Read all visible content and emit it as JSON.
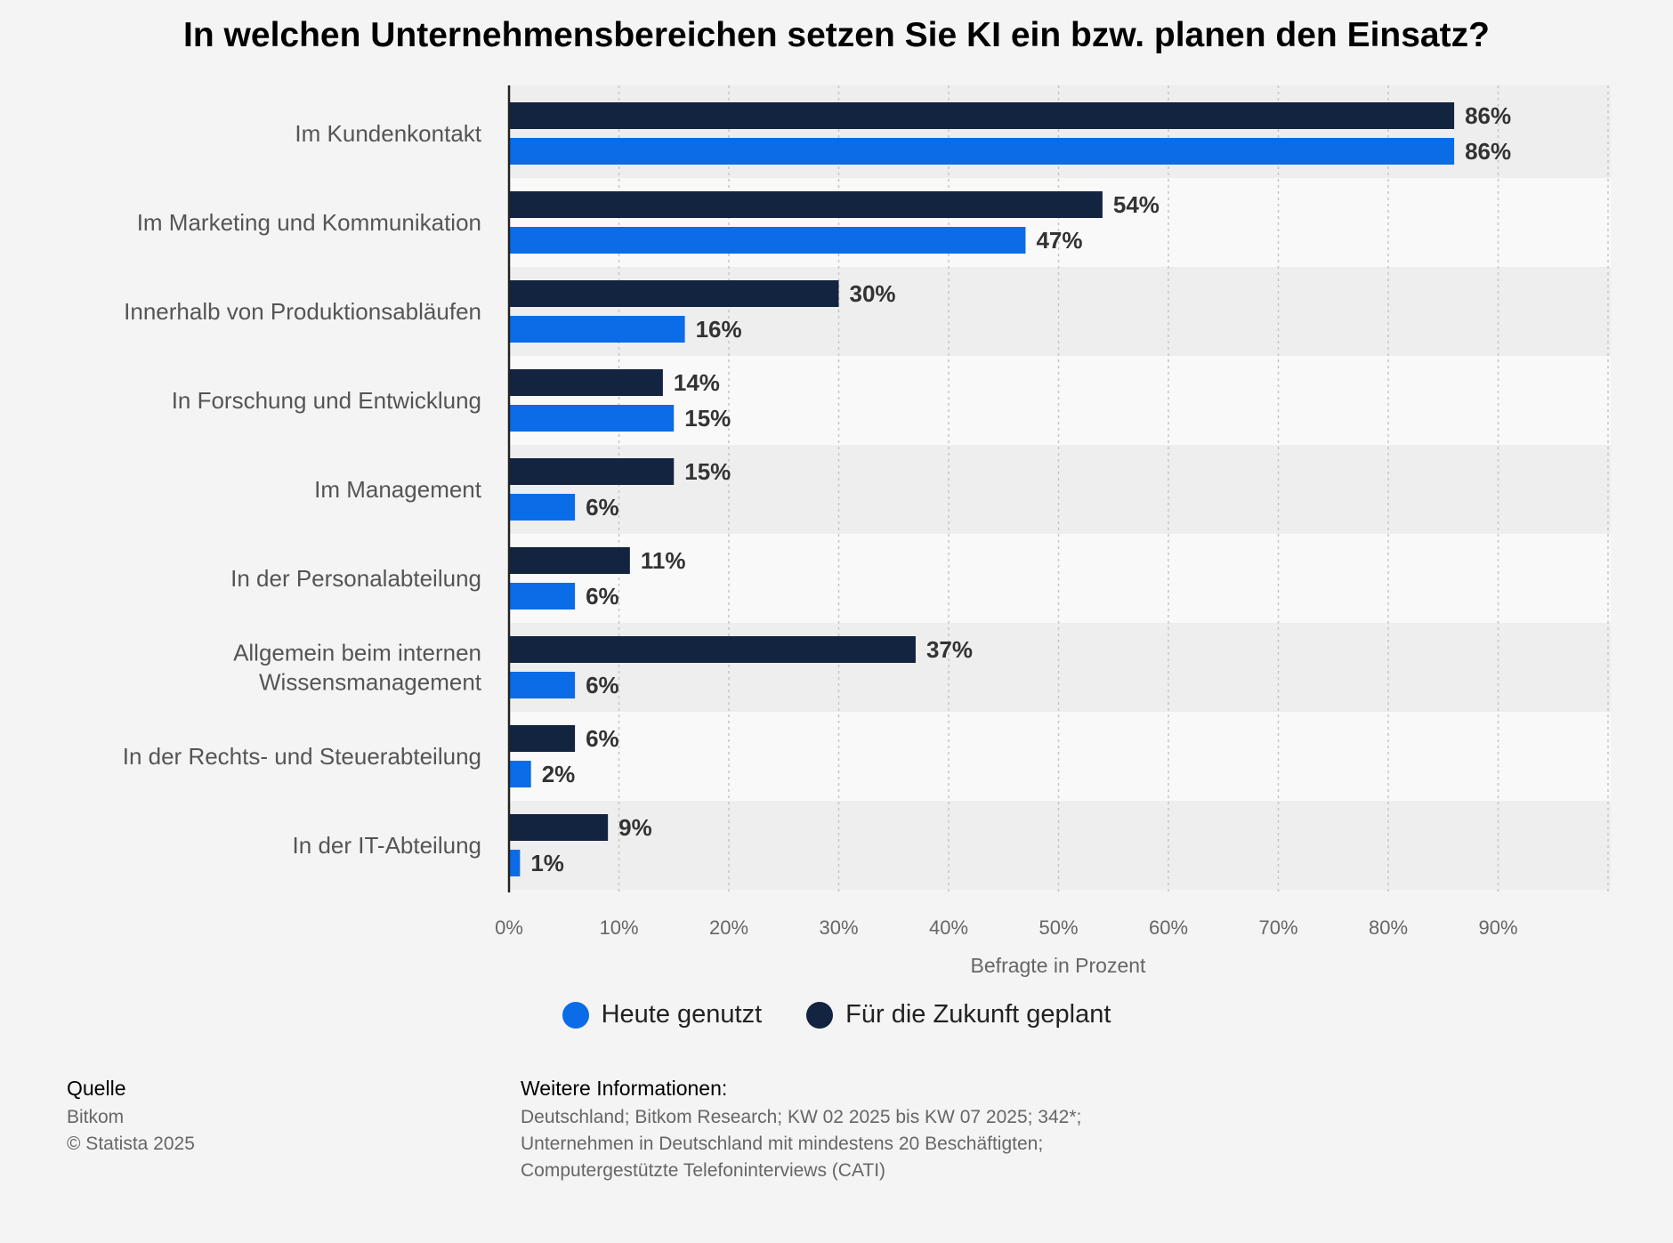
{
  "chart_data": {
    "type": "bar",
    "orientation": "horizontal",
    "title": "In welchen Unternehmensbereichen setzen Sie KI ein bzw. planen den Einsatz?",
    "xlabel": "Befragte in Prozent",
    "xlim": [
      0,
      100
    ],
    "xticks": [
      "0%",
      "10%",
      "20%",
      "30%",
      "40%",
      "50%",
      "60%",
      "70%",
      "80%",
      "90%"
    ],
    "categories": [
      [
        "Im Kundenkontakt"
      ],
      [
        "Im Marketing und Kommunikation"
      ],
      [
        "Innerhalb von Produktionsabläufen"
      ],
      [
        "In Forschung und Entwicklung"
      ],
      [
        "Im Management"
      ],
      [
        "In der Personalabteilung"
      ],
      [
        "Allgemein beim internen",
        "Wissensmanagement"
      ],
      [
        "In der Rechts- und Steuerabteilung"
      ],
      [
        "In der IT-Abteilung"
      ]
    ],
    "series": [
      {
        "name": "Für die Zukunft geplant",
        "color": "#12243f",
        "values": [
          86,
          54,
          30,
          14,
          15,
          11,
          37,
          6,
          9
        ]
      },
      {
        "name": "Heute genutzt",
        "color": "#0a6ce6",
        "values": [
          86,
          47,
          16,
          15,
          6,
          6,
          6,
          2,
          1
        ]
      }
    ],
    "legend": [
      {
        "name": "Heute genutzt",
        "color": "#0a6ce6"
      },
      {
        "name": "Für die Zukunft geplant",
        "color": "#12243f"
      }
    ],
    "legend_position": "bottom",
    "grid": true
  },
  "footer": {
    "source_heading": "Quelle",
    "source_lines": [
      "Bitkom",
      "© Statista 2025"
    ],
    "info_heading": "Weitere Informationen:",
    "info_lines": [
      "Deutschland; Bitkom Research; KW 02 2025 bis KW 07 2025; 342*;",
      "Unternehmen in Deutschland mit mindestens 20 Beschäftigten;",
      "Computergestützte Telefoninterviews (CATI)"
    ]
  }
}
